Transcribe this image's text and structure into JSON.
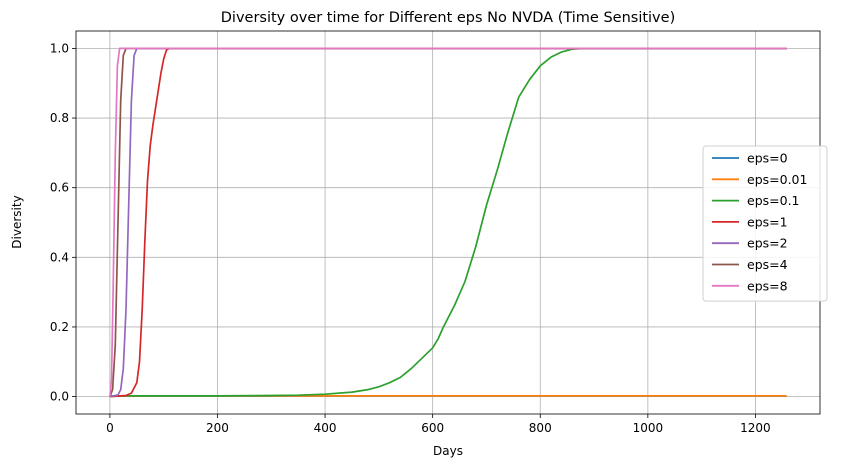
{
  "chart_data": {
    "type": "line",
    "title": "Diversity over time for Different eps No NVDA (Time Sensitive)",
    "xlabel": "Days",
    "ylabel": "Diversity",
    "xlim": [
      -63,
      1320
    ],
    "ylim": [
      -0.05,
      1.05
    ],
    "xticks": [
      0,
      200,
      400,
      600,
      800,
      1000,
      1200
    ],
    "yticks": [
      0.0,
      0.2,
      0.4,
      0.6,
      0.8,
      1.0
    ],
    "xtick_labels": [
      "0",
      "200",
      "400",
      "600",
      "800",
      "1000",
      "1200"
    ],
    "ytick_labels": [
      "0.0",
      "0.2",
      "0.4",
      "0.6",
      "0.8",
      "1.0"
    ],
    "grid": true,
    "legend_position": "center-right",
    "series": [
      {
        "name": "eps=0",
        "color": "#1f77b4",
        "x": [
          0,
          1258
        ],
        "y": [
          0.002,
          0.002
        ]
      },
      {
        "name": "eps=0.01",
        "color": "#ff7f0e",
        "x": [
          0,
          1258
        ],
        "y": [
          0.002,
          0.002
        ]
      },
      {
        "name": "eps=0.1",
        "color": "#2ca02c",
        "x": [
          0,
          100,
          200,
          300,
          350,
          400,
          450,
          480,
          500,
          520,
          540,
          560,
          580,
          600,
          610,
          620,
          630,
          640,
          660,
          680,
          700,
          720,
          740,
          760,
          780,
          800,
          820,
          840,
          860,
          880,
          900,
          1000,
          1258
        ],
        "y": [
          0.002,
          0.002,
          0.002,
          0.003,
          0.004,
          0.007,
          0.013,
          0.02,
          0.028,
          0.04,
          0.055,
          0.08,
          0.11,
          0.14,
          0.165,
          0.2,
          0.23,
          0.26,
          0.33,
          0.43,
          0.55,
          0.65,
          0.76,
          0.86,
          0.91,
          0.95,
          0.975,
          0.99,
          0.998,
          1.0,
          1.0,
          1.0,
          1.0
        ]
      },
      {
        "name": "eps=1",
        "color": "#d62728",
        "x": [
          0,
          30,
          40,
          50,
          55,
          60,
          65,
          70,
          75,
          80,
          85,
          90,
          95,
          100,
          105,
          110,
          1258
        ],
        "y": [
          0.0,
          0.003,
          0.01,
          0.04,
          0.1,
          0.25,
          0.45,
          0.62,
          0.72,
          0.78,
          0.83,
          0.88,
          0.93,
          0.97,
          0.995,
          1.0,
          1.0
        ]
      },
      {
        "name": "eps=2",
        "color": "#9467bd",
        "x": [
          0,
          15,
          20,
          25,
          30,
          35,
          40,
          45,
          50,
          1258
        ],
        "y": [
          0.0,
          0.005,
          0.02,
          0.08,
          0.25,
          0.55,
          0.85,
          0.98,
          1.0,
          1.0
        ]
      },
      {
        "name": "eps=4",
        "color": "#8c564b",
        "x": [
          0,
          5,
          10,
          15,
          20,
          25,
          30,
          1258
        ],
        "y": [
          0.0,
          0.02,
          0.15,
          0.5,
          0.85,
          0.98,
          1.0,
          1.0
        ]
      },
      {
        "name": "eps=8",
        "color": "#e377c2",
        "x": [
          0,
          3,
          6,
          10,
          14,
          18,
          22,
          1258
        ],
        "y": [
          0.0,
          0.05,
          0.3,
          0.7,
          0.95,
          1.0,
          1.0,
          1.0
        ]
      }
    ]
  }
}
